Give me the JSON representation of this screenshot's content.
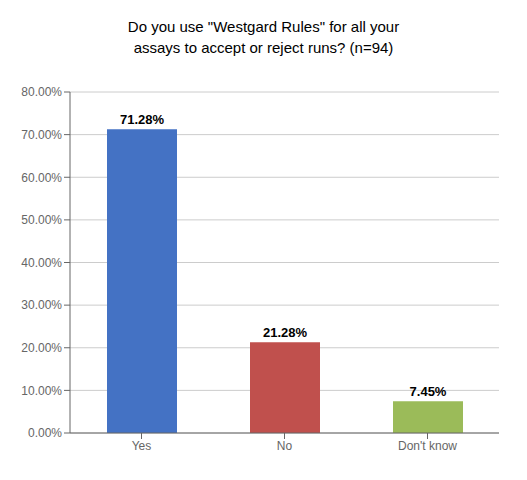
{
  "chart_data": {
    "type": "bar",
    "title": "Do you use \"Westgard Rules\" for all your\nassays to accept or reject runs? (n=94)",
    "categories": [
      "Yes",
      "No",
      "Don't know"
    ],
    "values": [
      71.28,
      21.28,
      7.45
    ],
    "value_labels": [
      "71.28%",
      "21.28%",
      "7.45%"
    ],
    "data_labels": true,
    "colors": [
      "#4472C4",
      "#C0504D",
      "#9BBB59"
    ],
    "ylim": [
      0,
      80
    ],
    "yticks": [
      {
        "value": 0,
        "label": "0.00%"
      },
      {
        "value": 10,
        "label": "10.00%"
      },
      {
        "value": 20,
        "label": "20.00%"
      },
      {
        "value": 30,
        "label": "30.00%"
      },
      {
        "value": 40,
        "label": "40.00%"
      },
      {
        "value": 50,
        "label": "50.00%"
      },
      {
        "value": 60,
        "label": "60.00%"
      },
      {
        "value": 70,
        "label": "70.00%"
      },
      {
        "value": 80,
        "label": "80.00%"
      }
    ],
    "grid": true
  }
}
